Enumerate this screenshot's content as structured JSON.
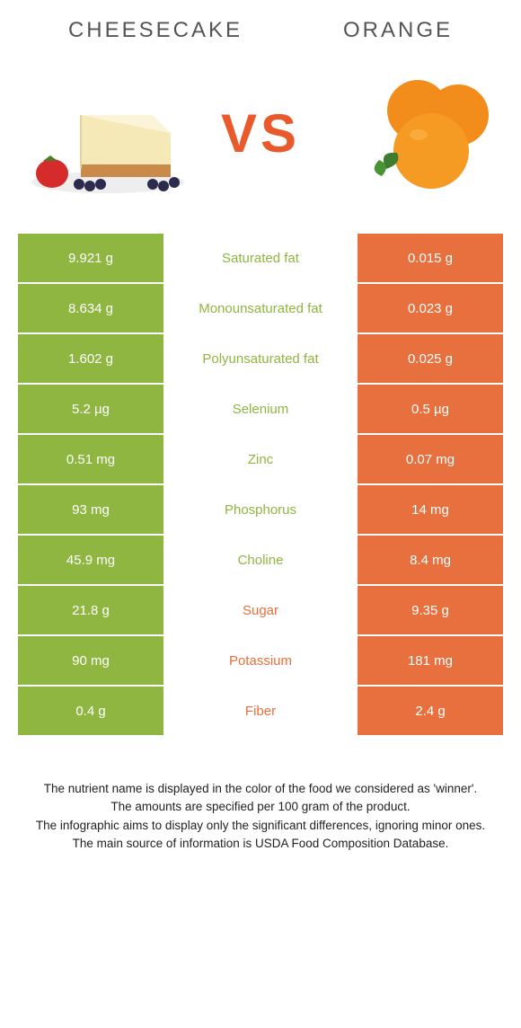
{
  "titles": {
    "left": "Cheesecake",
    "right": "Orange"
  },
  "vs": "VS",
  "colors": {
    "left": "#8eb640",
    "right": "#e8703e",
    "green": "#8eb640",
    "orange": "#e8703e"
  },
  "rows": [
    {
      "left": "9.921 g",
      "label": "Saturated fat",
      "right": "0.015 g",
      "winner": "left"
    },
    {
      "left": "8.634 g",
      "label": "Monounsaturated fat",
      "right": "0.023 g",
      "winner": "left"
    },
    {
      "left": "1.602 g",
      "label": "Polyunsaturated fat",
      "right": "0.025 g",
      "winner": "left"
    },
    {
      "left": "5.2 µg",
      "label": "Selenium",
      "right": "0.5 µg",
      "winner": "left"
    },
    {
      "left": "0.51 mg",
      "label": "Zinc",
      "right": "0.07 mg",
      "winner": "left"
    },
    {
      "left": "93 mg",
      "label": "Phosphorus",
      "right": "14 mg",
      "winner": "left"
    },
    {
      "left": "45.9 mg",
      "label": "Choline",
      "right": "8.4 mg",
      "winner": "left"
    },
    {
      "left": "21.8 g",
      "label": "Sugar",
      "right": "9.35 g",
      "winner": "right"
    },
    {
      "left": "90 mg",
      "label": "Potassium",
      "right": "181 mg",
      "winner": "right"
    },
    {
      "left": "0.4 g",
      "label": "Fiber",
      "right": "2.4 g",
      "winner": "right"
    }
  ],
  "footer": [
    "The nutrient name is displayed in the color of the food we considered as 'winner'.",
    "The amounts are specified per 100 gram of the product.",
    "The infographic aims to display only the significant differences, ignoring minor ones.",
    "The main source of information is USDA Food Composition Database."
  ]
}
